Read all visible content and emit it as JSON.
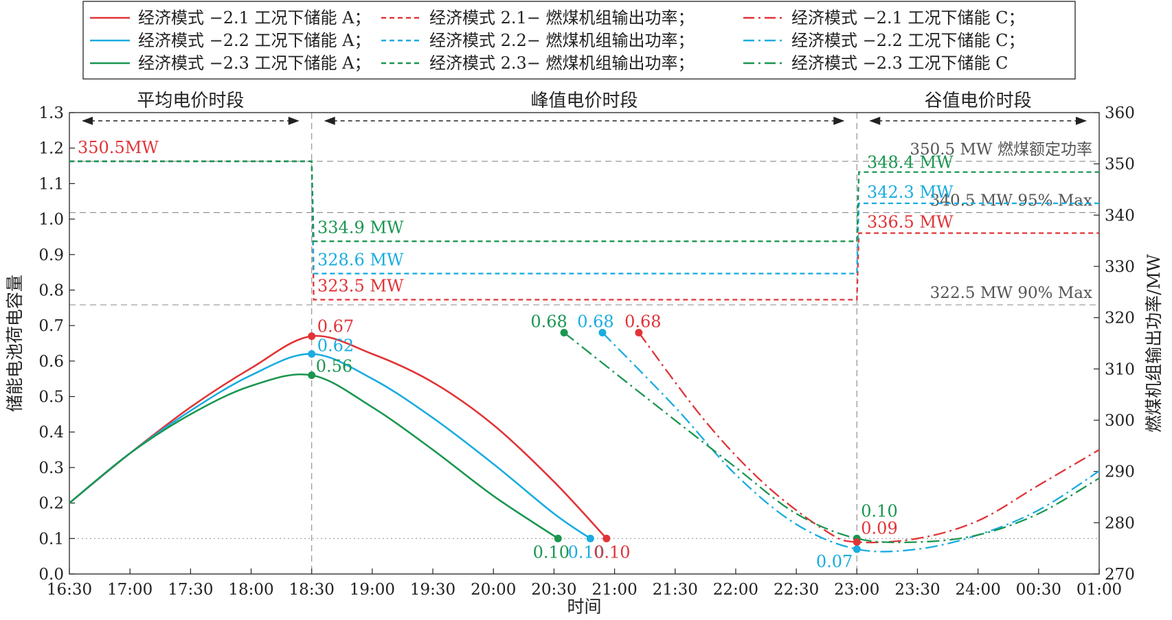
{
  "chart_data": {
    "type": "line",
    "xlabel": "时间",
    "ylabel_left": "储能电池荷电容量",
    "ylabel_right": "燃煤机组输出功率/MW",
    "x_ticks": [
      "16:30",
      "17:00",
      "17:30",
      "18:00",
      "18:30",
      "19:00",
      "19:30",
      "20:00",
      "20:30",
      "21:00",
      "21:30",
      "22:00",
      "22:30",
      "23:00",
      "23:30",
      "24:00",
      "00:30",
      "01:00"
    ],
    "x_range_minutes": [
      990,
      1500
    ],
    "ylim_left": [
      0.0,
      1.3
    ],
    "ylim_right": [
      270,
      360
    ],
    "y_ticks_left": [
      "0.0",
      "0.1",
      "0.2",
      "0.3",
      "0.4",
      "0.5",
      "0.6",
      "0.7",
      "0.8",
      "0.9",
      "1.0",
      "1.1",
      "1.2",
      "1.3"
    ],
    "y_ticks_right": [
      "270",
      "280",
      "290",
      "300",
      "310",
      "320",
      "330",
      "340",
      "350",
      "360"
    ],
    "colors": {
      "red": "#e03437",
      "blue": "#1aace0",
      "green": "#1a9650"
    },
    "periods": [
      {
        "label": "平均电价时段",
        "from": "16:30",
        "to": "18:30"
      },
      {
        "label": "峰值电价时段",
        "from": "18:30",
        "to": "23:00"
      },
      {
        "label": "谷值电价时段",
        "from": "23:00",
        "to": "01:00"
      }
    ],
    "reference_lines": [
      {
        "label": "350.5 MW 燃煤额定功率",
        "value": 350.5,
        "axis": "right"
      },
      {
        "label": "340.5 MW 95% Max",
        "value": 340.5,
        "axis": "right"
      },
      {
        "label": "322.5 MW 90% Max",
        "value": 322.5,
        "axis": "right"
      },
      {
        "label": "",
        "value": 0.1,
        "axis": "left"
      }
    ],
    "legend": [
      [
        "经济模式 −2.1 工况下储能 A；",
        "经济模式 2.1− 燃煤机组输出功率；",
        "经济模式 −2.1 工况下储能 C；"
      ],
      [
        "经济模式 −2.2 工况下储能 A；",
        "经济模式 2.2− 燃煤机组输出功率；",
        "经济模式 −2.2 工况下储能 C；"
      ],
      [
        "经济模式 −2.3 工况下储能 A；",
        "经济模式 2.3− 燃煤机组输出功率；",
        "经济模式 −2.3 工况下储能 C"
      ]
    ],
    "series": [
      {
        "name": "经济模式 −2.1 工况下储能 A",
        "color": "red",
        "dash": "solid",
        "axis": "left",
        "x": [
          "16:30",
          "17:00",
          "17:30",
          "18:00",
          "18:30",
          "19:00",
          "19:30",
          "20:00",
          "20:30",
          "20:56"
        ],
        "y": [
          0.2,
          0.34,
          0.47,
          0.58,
          0.67,
          0.62,
          0.54,
          0.42,
          0.26,
          0.1
        ]
      },
      {
        "name": "经济模式 −2.2 工况下储能 A",
        "color": "blue",
        "dash": "solid",
        "axis": "left",
        "x": [
          "16:30",
          "17:00",
          "17:30",
          "18:00",
          "18:30",
          "19:00",
          "19:30",
          "20:00",
          "20:30",
          "20:48"
        ],
        "y": [
          0.2,
          0.34,
          0.46,
          0.56,
          0.62,
          0.55,
          0.44,
          0.31,
          0.17,
          0.1
        ]
      },
      {
        "name": "经济模式 −2.3 工况下储能 A",
        "color": "green",
        "dash": "solid",
        "axis": "left",
        "x": [
          "16:30",
          "17:00",
          "17:30",
          "18:00",
          "18:30",
          "19:00",
          "19:30",
          "20:00",
          "20:32"
        ],
        "y": [
          0.2,
          0.34,
          0.45,
          0.53,
          0.56,
          0.47,
          0.35,
          0.22,
          0.1
        ]
      },
      {
        "name": "经济模式 2.1− 燃煤机组输出功率",
        "color": "red",
        "dash": "dash",
        "axis": "right",
        "x": [
          "16:30",
          "18:30",
          "18:31",
          "23:00",
          "23:01",
          "01:00"
        ],
        "y": [
          350.5,
          350.5,
          323.5,
          323.5,
          336.5,
          336.5
        ]
      },
      {
        "name": "经济模式 2.2− 燃煤机组输出功率",
        "color": "blue",
        "dash": "dash",
        "axis": "right",
        "x": [
          "16:30",
          "18:30",
          "18:31",
          "23:00",
          "23:01",
          "01:00"
        ],
        "y": [
          350.5,
          350.5,
          328.6,
          328.6,
          342.3,
          342.3
        ]
      },
      {
        "name": "经济模式 2.3− 燃煤机组输出功率",
        "color": "green",
        "dash": "dash",
        "axis": "right",
        "x": [
          "16:30",
          "18:30",
          "18:31",
          "23:00",
          "23:01",
          "01:00"
        ],
        "y": [
          350.5,
          350.5,
          334.9,
          334.9,
          348.4,
          348.4
        ]
      },
      {
        "name": "经济模式 −2.1 工况下储能 C",
        "color": "red",
        "dash": "dashdot",
        "axis": "left",
        "x": [
          "21:12",
          "21:45",
          "22:15",
          "22:45",
          "23:00",
          "23:30",
          "24:00",
          "00:30",
          "01:00"
        ],
        "y": [
          0.68,
          0.43,
          0.25,
          0.12,
          0.09,
          0.1,
          0.15,
          0.25,
          0.35
        ]
      },
      {
        "name": "经济模式 −2.2 工况下储能 C",
        "color": "blue",
        "dash": "dashdot",
        "axis": "left",
        "x": [
          "20:54",
          "21:30",
          "22:00",
          "22:30",
          "23:00",
          "23:30",
          "24:00",
          "00:30",
          "01:00"
        ],
        "y": [
          0.68,
          0.47,
          0.28,
          0.14,
          0.07,
          0.07,
          0.11,
          0.18,
          0.29
        ]
      },
      {
        "name": "经济模式 −2.3 工况下储能 C",
        "color": "green",
        "dash": "dashdot",
        "axis": "left",
        "x": [
          "20:35",
          "21:15",
          "22:00",
          "22:30",
          "23:00",
          "23:30",
          "24:00",
          "00:30",
          "01:00"
        ],
        "y": [
          0.68,
          0.5,
          0.3,
          0.17,
          0.1,
          0.09,
          0.11,
          0.17,
          0.27
        ]
      }
    ],
    "point_labels": [
      {
        "text": "0.67",
        "color": "red",
        "x": "18:30",
        "y": 0.67
      },
      {
        "text": "0.62",
        "color": "blue",
        "x": "18:30",
        "y": 0.62
      },
      {
        "text": "0.56",
        "color": "green",
        "x": "18:30",
        "y": 0.56
      },
      {
        "text": "0.10",
        "color": "green",
        "x": "20:32",
        "y": 0.1
      },
      {
        "text": "0.10",
        "color": "blue",
        "x": "20:48",
        "y": 0.1
      },
      {
        "text": "0.10",
        "color": "red",
        "x": "20:56",
        "y": 0.1
      },
      {
        "text": "0.68",
        "color": "green",
        "x": "20:35",
        "y": 0.68
      },
      {
        "text": "0.68",
        "color": "blue",
        "x": "20:54",
        "y": 0.68
      },
      {
        "text": "0.68",
        "color": "red",
        "x": "21:12",
        "y": 0.68
      },
      {
        "text": "0.10",
        "color": "green",
        "x": "23:00",
        "y": 0.1
      },
      {
        "text": "0.09",
        "color": "red",
        "x": "23:00",
        "y": 0.09
      },
      {
        "text": "0.07",
        "color": "blue",
        "x": "23:00",
        "y": 0.07
      }
    ],
    "power_labels": [
      {
        "text": "350.5MW",
        "color": "red",
        "value": 350.5
      },
      {
        "text": "334.9 MW",
        "color": "green",
        "value": 334.9
      },
      {
        "text": "328.6 MW",
        "color": "blue",
        "value": 328.6
      },
      {
        "text": "323.5 MW",
        "color": "red",
        "value": 323.5
      },
      {
        "text": "348.4 MW",
        "color": "green",
        "value": 348.4
      },
      {
        "text": "342.3 MW",
        "color": "blue",
        "value": 342.3
      },
      {
        "text": "336.5 MW",
        "color": "red",
        "value": 336.5
      }
    ]
  }
}
